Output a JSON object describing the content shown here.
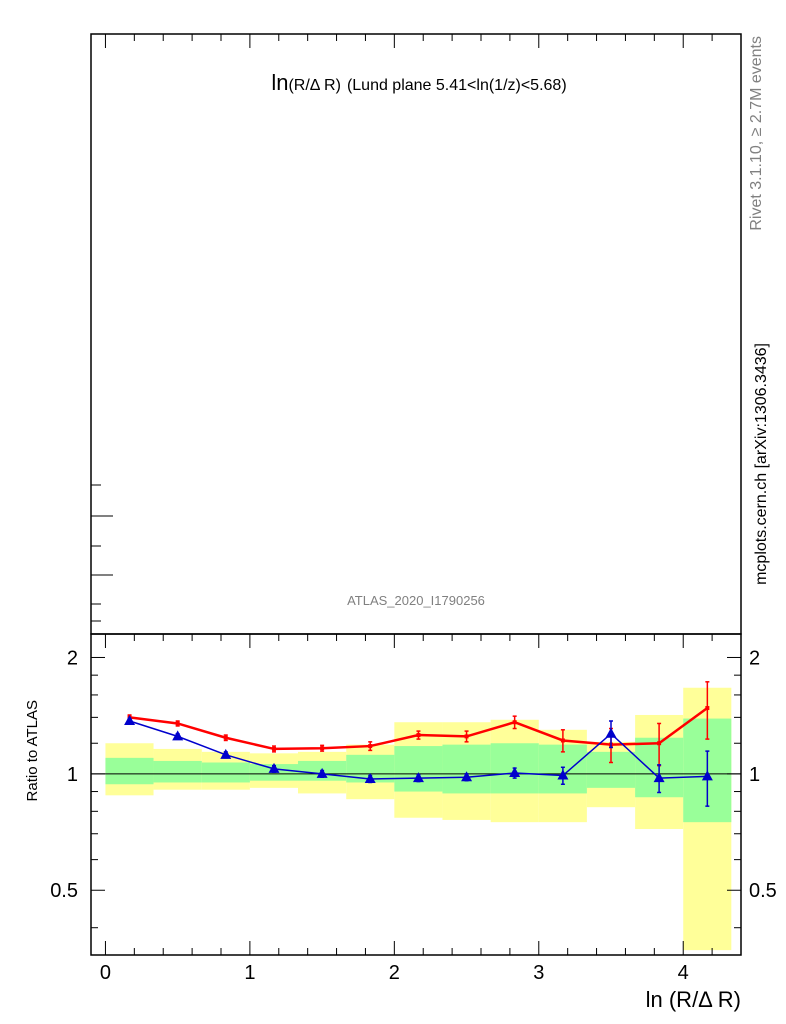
{
  "chart_data": [
    {
      "type": "line",
      "panel": "main",
      "title_prefix": "ln",
      "title_main": "(R/Δ R)",
      "title_suffix": "(Lund plane 5.41<ln(1/z)<5.68)",
      "watermark": "ATLAS_2020_I1790256",
      "series": []
    },
    {
      "type": "line",
      "panel": "ratio",
      "xlabel": "ln (R/Δ R)",
      "ylabel": "Ratio to ATLAS",
      "xlim": [
        -0.1,
        4.4
      ],
      "ylim": [
        0.34,
        2.3
      ],
      "log_y": true,
      "xticks": [
        "0",
        "1",
        "2",
        "3",
        "4"
      ],
      "yticks": [
        "0.5",
        "1",
        "2"
      ],
      "x_edges": [
        0.0,
        0.333,
        0.667,
        1.0,
        1.333,
        1.667,
        2.0,
        2.333,
        2.667,
        3.0,
        3.333,
        3.667,
        4.0,
        4.333
      ],
      "band_outer": {
        "color": "#ffff99",
        "low": [
          0.88,
          0.91,
          0.91,
          0.92,
          0.89,
          0.86,
          0.77,
          0.76,
          0.75,
          0.75,
          0.82,
          0.72,
          0.35
        ],
        "high": [
          1.2,
          1.16,
          1.14,
          1.13,
          1.14,
          1.19,
          1.36,
          1.36,
          1.38,
          1.3,
          1.21,
          1.42,
          1.67
        ]
      },
      "band_inner": {
        "color": "#99ff99",
        "low": [
          0.94,
          0.95,
          0.95,
          0.96,
          0.96,
          0.95,
          0.9,
          0.89,
          0.89,
          0.89,
          0.92,
          0.87,
          0.75
        ],
        "high": [
          1.1,
          1.08,
          1.07,
          1.06,
          1.08,
          1.12,
          1.18,
          1.19,
          1.2,
          1.19,
          1.14,
          1.24,
          1.39
        ]
      },
      "reference_line": 1,
      "series": [
        {
          "color": "#ff0000",
          "marker": "square",
          "x": [
            0.167,
            0.5,
            0.833,
            1.167,
            1.5,
            1.833,
            2.167,
            2.5,
            2.833,
            3.167,
            3.5,
            3.833,
            4.167
          ],
          "y": [
            1.4,
            1.35,
            1.24,
            1.16,
            1.165,
            1.18,
            1.26,
            1.25,
            1.36,
            1.22,
            1.19,
            1.2,
            1.48
          ],
          "yerr": [
            0.02,
            0.02,
            0.02,
            0.02,
            0.02,
            0.03,
            0.03,
            0.04,
            0.05,
            0.08,
            0.12,
            0.15,
            0.25
          ]
        },
        {
          "color": "#0000cc",
          "marker": "triangle",
          "x": [
            0.167,
            0.5,
            0.833,
            1.167,
            1.5,
            1.833,
            2.167,
            2.5,
            2.833,
            3.167,
            3.5,
            3.833,
            4.167
          ],
          "y": [
            1.37,
            1.25,
            1.12,
            1.03,
            1.0,
            0.97,
            0.975,
            0.98,
            1.005,
            0.99,
            1.27,
            0.975,
            0.985
          ],
          "yerr": [
            0.02,
            0.02,
            0.02,
            0.02,
            0.02,
            0.02,
            0.02,
            0.02,
            0.03,
            0.05,
            0.1,
            0.08,
            0.16
          ]
        }
      ]
    }
  ],
  "side_texts": {
    "rivet": "Rivet 3.1.10, ≥ 2.7M events",
    "mcplots": "mcplots.cern.ch [arXiv:1306.3436]"
  }
}
